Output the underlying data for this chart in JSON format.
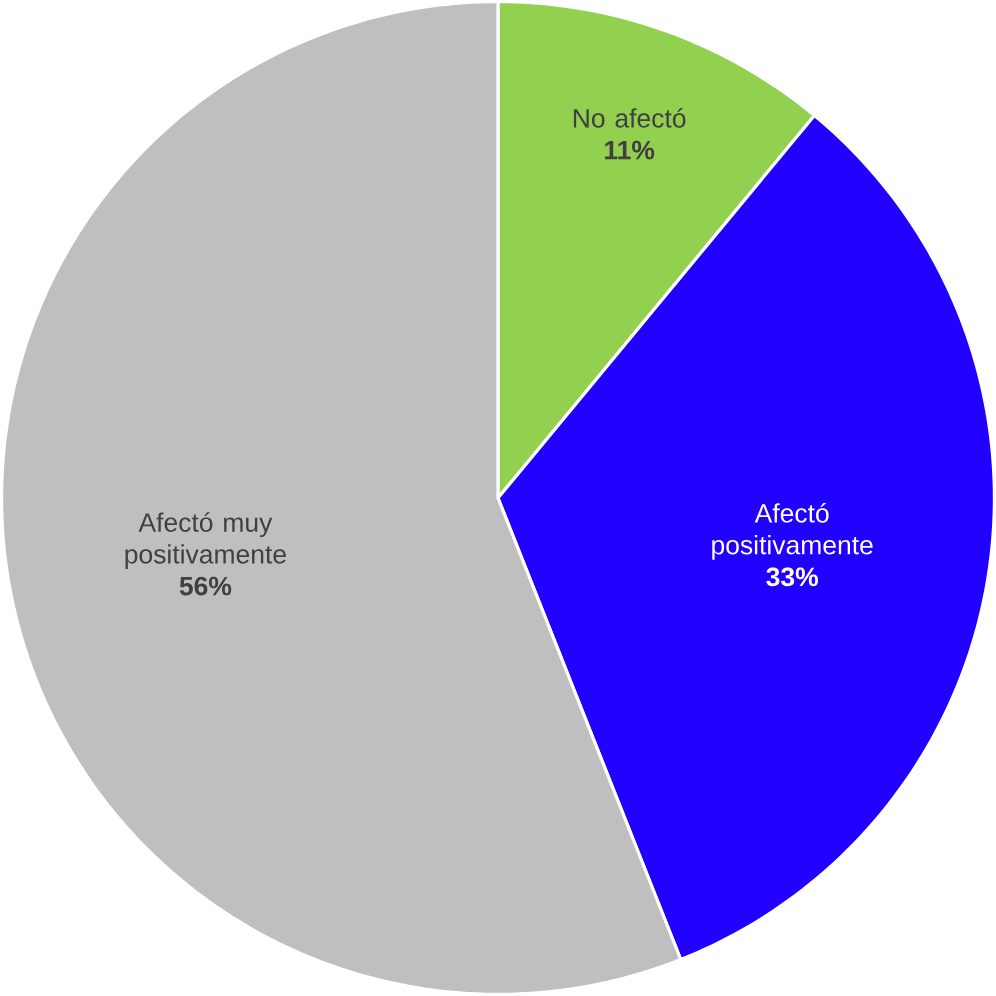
{
  "chart_data": {
    "type": "pie",
    "categories": [
      "No afectó",
      "Afectó positivamente",
      "Afectó muy positivamente"
    ],
    "values": [
      11,
      33,
      56
    ],
    "value_labels": [
      "11%",
      "33%",
      "56%"
    ],
    "colors": [
      "#92d050",
      "#2200ff",
      "#bfbfbf"
    ]
  }
}
